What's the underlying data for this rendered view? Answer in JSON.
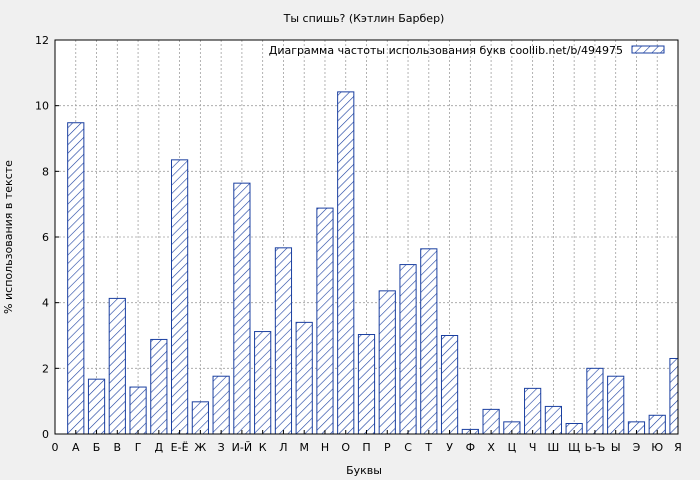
{
  "chart_data": {
    "type": "bar",
    "title": "Ты спишь? (Кэтлин Барбер)",
    "xlabel": "Буквы",
    "ylabel": "% использования в тексте",
    "legend": {
      "label": "Диаграмма частоты использования букв  coollib.net/b/494975",
      "position": "top-right"
    },
    "grid": true,
    "ylim": [
      0,
      12
    ],
    "yticks": [
      "0",
      "2",
      "4",
      "6",
      "8",
      "10",
      "12"
    ],
    "x_tick_labels": [
      "0",
      "А",
      "Б",
      "В",
      "Г",
      "Д",
      "Е-Ё",
      "Ж",
      "З",
      "И-Й",
      "К",
      "Л",
      "М",
      "Н",
      "О",
      "П",
      "Р",
      "С",
      "Т",
      "У",
      "Ф",
      "Х",
      "Ц",
      "Ч",
      "Ш",
      "Щ",
      "Ь-Ъ",
      "Ы",
      "Э",
      "Ю",
      "Я"
    ],
    "categories": [
      "А",
      "Б",
      "В",
      "Г",
      "Д",
      "Е-Ё",
      "Ж",
      "З",
      "И-Й",
      "К",
      "Л",
      "М",
      "Н",
      "О",
      "П",
      "Р",
      "С",
      "Т",
      "У",
      "Ф",
      "Х",
      "Ц",
      "Ч",
      "Ш",
      "Щ",
      "Ь-Ъ",
      "Ы",
      "Э",
      "Ю",
      "Я"
    ],
    "values": [
      9.48,
      1.67,
      4.13,
      1.43,
      2.88,
      8.35,
      0.98,
      1.76,
      7.64,
      3.12,
      5.67,
      3.4,
      6.88,
      10.42,
      3.03,
      4.36,
      5.16,
      5.64,
      3.0,
      0.14,
      0.75,
      0.37,
      1.39,
      0.84,
      0.32,
      2.0,
      1.76,
      0.37,
      0.57,
      2.3
    ],
    "colors": {
      "bar_stroke": "#1a3fa0",
      "hatch": "#1a3fa0",
      "background": "#f0f0f0",
      "plot_background": "#ffffff",
      "grid": "#a0a0a0"
    }
  }
}
